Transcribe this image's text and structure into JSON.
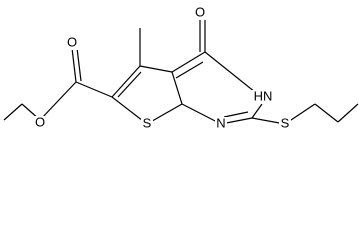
{
  "nodes": [
    {
      "label": "O"
    },
    {
      "label": "O"
    },
    {
      "label": "O"
    },
    {
      "label": "S"
    },
    {
      "label": "N"
    },
    {
      "label": "HN"
    },
    {
      "label": "S"
    }
  ]
}
